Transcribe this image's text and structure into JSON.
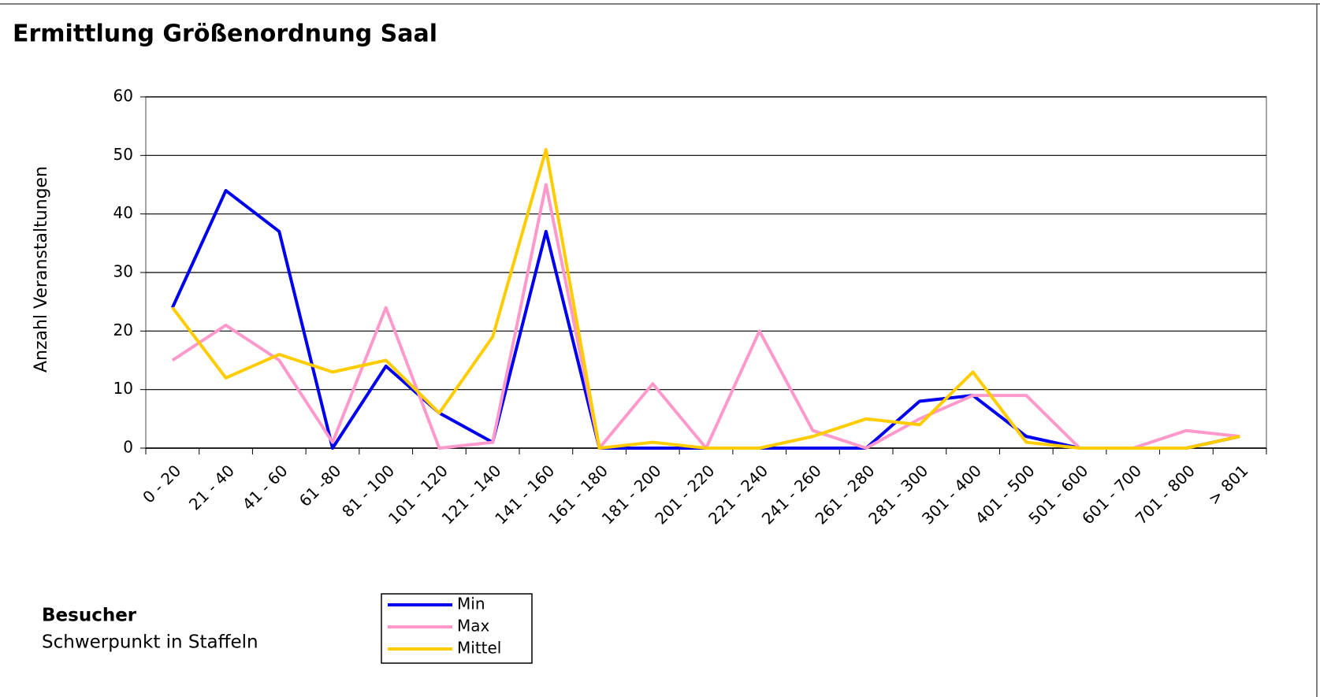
{
  "chart_data": {
    "type": "line",
    "title": "Ermittlung Größenordnung Saal",
    "y_label": "Anzahl Veranstaltungen",
    "x_label": "Besucher",
    "x_sublabel": "Schwerpunkt in Staffeln",
    "categories": [
      "0 - 20",
      "21 - 40",
      "41 - 60",
      "61 -80",
      "81 - 100",
      "101 - 120",
      "121 - 140",
      "141 - 160",
      "161 - 180",
      "181 - 200",
      "201 - 220",
      "221 - 240",
      "241 - 260",
      "261 - 280",
      "281 - 300",
      "301 - 400",
      "401 - 500",
      "501 - 600",
      "601 - 700",
      "701 - 800",
      "> 801"
    ],
    "series": [
      {
        "name": "Min",
        "color": "#0000ee",
        "values": [
          24,
          44,
          37,
          0,
          14,
          6,
          1,
          37,
          0,
          0,
          0,
          0,
          0,
          0,
          8,
          9,
          2,
          0,
          0,
          0,
          2
        ]
      },
      {
        "name": "Max",
        "color": "#ff99cc",
        "values": [
          15,
          21,
          15,
          1,
          24,
          0,
          1,
          45,
          0,
          11,
          0,
          20,
          3,
          0,
          5,
          9,
          9,
          0,
          0,
          3,
          2
        ]
      },
      {
        "name": "Mittel",
        "color": "#ffcc00",
        "values": [
          24,
          12,
          16,
          13,
          15,
          6,
          19,
          51,
          0,
          1,
          0,
          0,
          2,
          5,
          4,
          13,
          1,
          0,
          0,
          0,
          2
        ]
      }
    ],
    "ylim": [
      0,
      60
    ],
    "yticks": [
      0,
      10,
      20,
      30,
      40,
      50,
      60
    ],
    "grid": true
  }
}
